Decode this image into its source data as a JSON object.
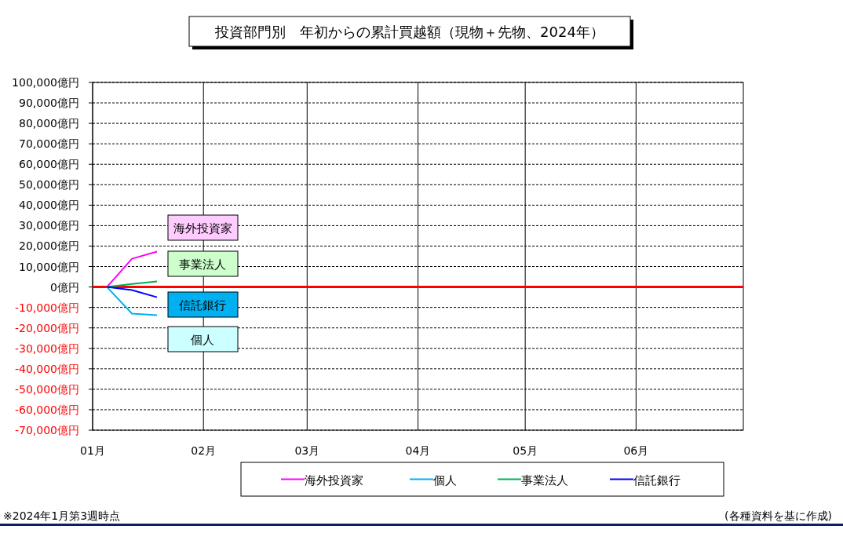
{
  "chart_data": {
    "type": "line",
    "title": "投資部門別　年初からの累計買越額（現物＋先物、2024年）",
    "x": [
      "2024-01-05",
      "2024-01-12",
      "2024-01-19"
    ],
    "series": [
      {
        "name": "海外投資家",
        "color": "#ff00ff",
        "values": [
          0,
          13800,
          17300
        ]
      },
      {
        "name": "個人",
        "color": "#00b0f0",
        "values": [
          0,
          -13000,
          -13800
        ]
      },
      {
        "name": "事業法人",
        "color": "#00b050",
        "values": [
          0,
          1500,
          2700
        ]
      },
      {
        "name": "信託銀行",
        "color": "#0000ff",
        "values": [
          0,
          -1500,
          -5000
        ]
      }
    ],
    "xlim": [
      "2024-01-01",
      "2024-07-01"
    ],
    "xticks": [
      {
        "value": "2024-01-01",
        "label": "01月"
      },
      {
        "value": "2024-02-01",
        "label": "02月"
      },
      {
        "value": "2024-03-01",
        "label": "03月"
      },
      {
        "value": "2024-04-01",
        "label": "04月"
      },
      {
        "value": "2024-05-01",
        "label": "05月"
      },
      {
        "value": "2024-06-01",
        "label": "06月"
      }
    ],
    "ylim": [
      -70000,
      100000
    ],
    "yticks": [
      {
        "value": 100000,
        "label": "100,000億円"
      },
      {
        "value": 90000,
        "label": "90,000億円"
      },
      {
        "value": 80000,
        "label": "80,000億円"
      },
      {
        "value": 70000,
        "label": "70,000億円"
      },
      {
        "value": 60000,
        "label": "60,000億円"
      },
      {
        "value": 50000,
        "label": "50,000億円"
      },
      {
        "value": 40000,
        "label": "40,000億円"
      },
      {
        "value": 30000,
        "label": "30,000億円"
      },
      {
        "value": 20000,
        "label": "20,000億円"
      },
      {
        "value": 10000,
        "label": "10,000億円"
      },
      {
        "value": 0,
        "label": "0億円"
      },
      {
        "value": -10000,
        "label": "-10,000億円"
      },
      {
        "value": -20000,
        "label": "-20,000億円"
      },
      {
        "value": -30000,
        "label": "-30,000億円"
      },
      {
        "value": -40000,
        "label": "-40,000億円"
      },
      {
        "value": -50000,
        "label": "-50,000億円"
      },
      {
        "value": -60000,
        "label": "-60,000億円"
      },
      {
        "value": -70000,
        "label": "-70,000億円"
      }
    ],
    "ref_lines": [
      {
        "axis": "y",
        "value": 0,
        "color": "#ff0000"
      }
    ],
    "annotations": [
      "海外投資家",
      "事業法人",
      "信託銀行",
      "個人",
      "※2024年1月第3週時点",
      "(各種資料を基に作成)"
    ],
    "grid": true,
    "legend": "bottom",
    "marker": "none",
    "line_style": "solid"
  }
}
